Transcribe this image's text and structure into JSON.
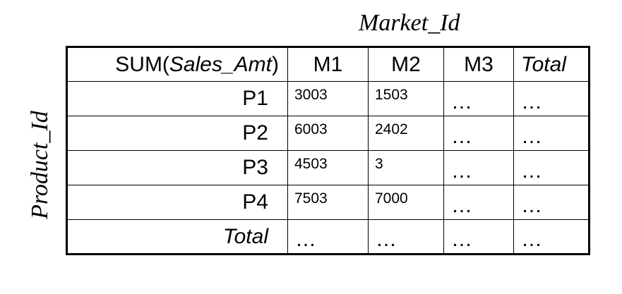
{
  "column_dimension": "Market_Id",
  "row_dimension": "Product_Id",
  "table": {
    "corner_label_prefix": "SUM(",
    "corner_label_measure": "Sales_Amt",
    "corner_label_suffix": ")",
    "columns": [
      "M1",
      "M2",
      "M3",
      "Total"
    ],
    "rows": [
      {
        "label": "P1",
        "cells": [
          "3003",
          "1503",
          "…",
          "…"
        ]
      },
      {
        "label": "P2",
        "cells": [
          "6003",
          "2402",
          "…",
          "…"
        ]
      },
      {
        "label": "P3",
        "cells": [
          "4503",
          "3",
          "…",
          "…"
        ]
      },
      {
        "label": "P4",
        "cells": [
          "7503",
          "7000",
          "…",
          "…"
        ]
      }
    ],
    "total_row": {
      "label": "Total",
      "cells": [
        "…",
        "…",
        "…",
        "…"
      ]
    }
  }
}
